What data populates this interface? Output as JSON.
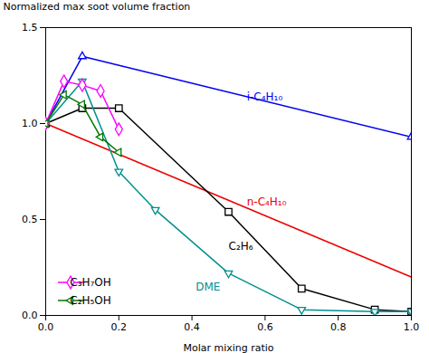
{
  "chart_data": {
    "type": "line",
    "xlabel": "Molar mixing ratio",
    "ylabel": "Normalized max soot volume fraction",
    "xlim": [
      0.0,
      1.0
    ],
    "ylim": [
      0.0,
      1.5
    ],
    "xticks": [
      {
        "value": 0.0,
        "label": "0.0"
      },
      0.2,
      0.4,
      0.6,
      0.8,
      {
        "value": 1.0,
        "label": "1.0"
      }
    ],
    "yticks": [
      {
        "value": 0.0,
        "label": "0.0"
      },
      0.5,
      {
        "value": 1.0,
        "label": "1.0"
      },
      1.5
    ],
    "grid": false,
    "legend": "lower left",
    "series": [
      {
        "color": "#0000ee",
        "marker": "triangle-up",
        "x": [
          0.0,
          0.1,
          1.0
        ],
        "values": [
          1.0,
          1.35,
          0.93
        ]
      },
      {
        "color": "#ee0000",
        "marker": "none",
        "x": [
          0.0,
          1.0
        ],
        "values": [
          1.0,
          0.2
        ]
      },
      {
        "color": "#000000",
        "marker": "square",
        "x": [
          0.0,
          0.1,
          0.2,
          0.5,
          0.7,
          0.9,
          1.0
        ],
        "values": [
          1.0,
          1.08,
          1.08,
          0.54,
          0.14,
          0.03,
          0.02
        ]
      },
      {
        "color": "#009090",
        "marker": "triangle-down",
        "x": [
          0.0,
          0.1,
          0.2,
          0.3,
          0.5,
          0.7,
          0.9,
          1.0
        ],
        "values": [
          1.0,
          1.22,
          0.75,
          0.55,
          0.22,
          0.03,
          0.02,
          0.02
        ]
      },
      {
        "name": "C₃H₇OH",
        "color": "#ff00ff",
        "marker": "diamond",
        "x": [
          0.0,
          0.05,
          0.1,
          0.15,
          0.2
        ],
        "values": [
          1.0,
          1.22,
          1.2,
          1.17,
          0.97
        ]
      },
      {
        "name": "C₂H₅OH",
        "color": "#007700",
        "marker": "triangle-left",
        "x": [
          0.0,
          0.05,
          0.1,
          0.15,
          0.2
        ],
        "values": [
          1.0,
          1.15,
          1.1,
          0.93,
          0.85
        ]
      }
    ],
    "annotations": [
      {
        "text": "i-C₄H₁₀",
        "x": 0.55,
        "y": 1.14,
        "color": "#0000ee"
      },
      {
        "text": "n-C₄H₁₀",
        "x": 0.55,
        "y": 0.59,
        "color": "#ee0000"
      },
      {
        "text": "C₂H₆",
        "x": 0.5,
        "y": 0.36,
        "color": "#000000"
      },
      {
        "text": "DME",
        "x": 0.41,
        "y": 0.15,
        "color": "#009090"
      }
    ]
  }
}
